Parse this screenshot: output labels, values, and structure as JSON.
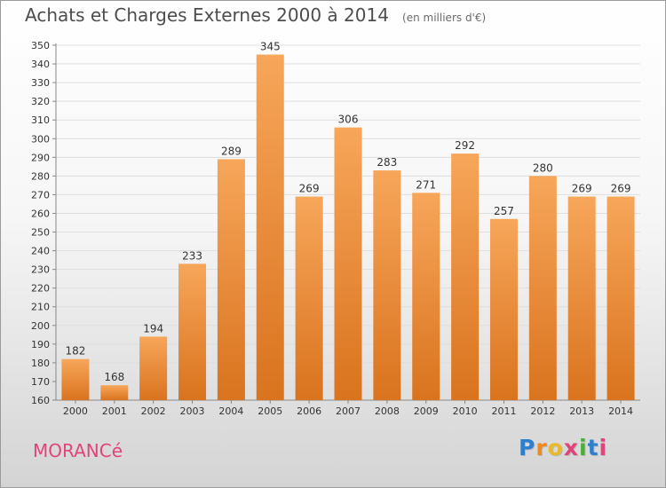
{
  "chart_data": {
    "type": "bar",
    "title": "Achats et Charges Externes 2000 à 2014",
    "subtitle": "(en milliers d'€)",
    "categories": [
      "2000",
      "2001",
      "2002",
      "2003",
      "2004",
      "2005",
      "2006",
      "2007",
      "2008",
      "2009",
      "2010",
      "2011",
      "2012",
      "2013",
      "2014"
    ],
    "values": [
      182,
      168,
      194,
      233,
      289,
      345,
      269,
      306,
      283,
      271,
      292,
      257,
      280,
      269,
      269
    ],
    "ylim": [
      160,
      350
    ],
    "yticks": [
      160,
      170,
      180,
      190,
      200,
      210,
      220,
      230,
      240,
      250,
      260,
      270,
      280,
      290,
      300,
      310,
      320,
      330,
      340,
      350
    ],
    "grid": true,
    "bar_color": "#f29a45"
  },
  "location": "MORANCé",
  "brand": {
    "letters": [
      "P",
      "r",
      "o",
      "x",
      "i",
      "t",
      "i"
    ],
    "colors": [
      "#2f7fd0",
      "#f08a1d",
      "#e8b92a",
      "#e0457a",
      "#4cae3a",
      "#2f7fd0",
      "#e0457a"
    ]
  }
}
